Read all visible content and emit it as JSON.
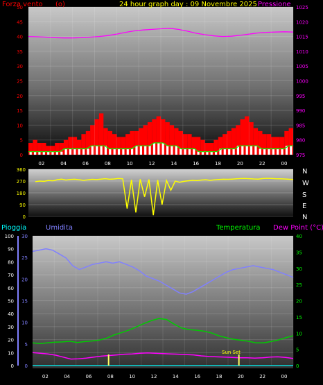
{
  "header": {
    "title": "24 hour graph day : 09 Novembre 2025",
    "left_label": "Forza vento",
    "left_unit": "(o)",
    "right_label": "Pressione"
  },
  "middle": {
    "compass": [
      "N",
      "W",
      "S",
      "E",
      "N"
    ]
  },
  "bottom_header": {
    "rain_label": "Pioggia",
    "humidity_label": "Umidita",
    "temp_label": "Temperatura",
    "dew_label": "Dew Point (°C)"
  },
  "sunset_label": "Sun Set",
  "colors": {
    "wind": "#ff0000",
    "gust_fill": "#ffffff",
    "wind_avg": "#00ff00",
    "pressure": "#ff00ff",
    "direction": "#ffff00",
    "humidity": "#8080ff",
    "temperature": "#00cc00",
    "dewpoint": "#ff00ff",
    "rain": "#00ffff"
  },
  "chart_data": [
    {
      "type": "area",
      "x_ticks": [
        "02",
        "04",
        "06",
        "08",
        "10",
        "12",
        "14",
        "16",
        "18",
        "20",
        "22",
        "00"
      ],
      "y_left_ticks": [
        0,
        5,
        10,
        15,
        20,
        25,
        30,
        35,
        40,
        45,
        50
      ],
      "ylim_left": [
        0,
        50
      ],
      "y_right_ticks": [
        975,
        980,
        985,
        990,
        995,
        1000,
        1005,
        1010,
        1015,
        1020,
        1025
      ],
      "ylim_right": [
        975,
        1025
      ],
      "series": [
        {
          "name": "Forza vento",
          "axis": "left",
          "values": [
            4,
            5,
            4,
            4,
            3,
            3,
            4,
            4,
            5,
            6,
            6,
            5,
            7,
            8,
            10,
            12,
            14,
            9,
            8,
            7,
            6,
            6,
            7,
            8,
            8,
            9,
            10,
            11,
            12,
            13,
            12,
            11,
            10,
            9,
            8,
            7,
            7,
            6,
            6,
            5,
            4,
            4,
            5,
            6,
            7,
            8,
            9,
            10,
            12,
            13,
            11,
            9,
            8,
            7,
            7,
            6,
            6,
            6,
            8,
            9
          ]
        },
        {
          "name": "Media",
          "axis": "left",
          "values": [
            1,
            1,
            1,
            1,
            1,
            1,
            1,
            1,
            2,
            2,
            2,
            2,
            2,
            2,
            3,
            3,
            3,
            3,
            2,
            2,
            2,
            2,
            2,
            2,
            3,
            3,
            3,
            3,
            4,
            4,
            4,
            3,
            3,
            3,
            2,
            2,
            2,
            2,
            1,
            1,
            1,
            1,
            1,
            2,
            2,
            2,
            2,
            3,
            3,
            3,
            3,
            3,
            2,
            2,
            2,
            2,
            2,
            2,
            3,
            3
          ]
        },
        {
          "name": "Pressione",
          "axis": "right",
          "values": [
            1015.0,
            1014.9,
            1014.8,
            1014.6,
            1014.5,
            1014.5,
            1014.6,
            1014.8,
            1015.0,
            1015.3,
            1015.8,
            1016.4,
            1016.9,
            1017.2,
            1017.4,
            1017.6,
            1017.8,
            1017.4,
            1016.8,
            1016.1,
            1015.6,
            1015.2,
            1015.0,
            1015.1,
            1015.4,
            1015.8,
            1016.2,
            1016.4,
            1016.5,
            1016.6,
            1016.5
          ]
        }
      ]
    },
    {
      "type": "line",
      "y_ticks": [
        0,
        90,
        180,
        270,
        360
      ],
      "ylim": [
        0,
        360
      ],
      "series": [
        {
          "name": "Direzione",
          "values": [
            265,
            270,
            268,
            275,
            272,
            280,
            285,
            278,
            282,
            284,
            280,
            276,
            279,
            283,
            281,
            285,
            288,
            284,
            286,
            290,
            287,
            60,
            280,
            30,
            284,
            150,
            282,
            10,
            278,
            90,
            275,
            200,
            270,
            260,
            268,
            272,
            276,
            274,
            278,
            280,
            276,
            279,
            282,
            284,
            283,
            285,
            287,
            289,
            290,
            288,
            286,
            285,
            289,
            291,
            290,
            288,
            287,
            286,
            284,
            282
          ]
        }
      ]
    },
    {
      "type": "line",
      "x_ticks": [
        "02",
        "04",
        "06",
        "08",
        "10",
        "12",
        "14",
        "16",
        "18",
        "20",
        "22",
        "00"
      ],
      "y_rain_ticks": [
        0,
        10,
        20,
        30,
        40,
        50,
        60,
        70,
        80,
        90,
        100
      ],
      "ylim_rain": [
        0,
        100
      ],
      "y_left_ticks": [
        0,
        5,
        10,
        15,
        20,
        25,
        30
      ],
      "ylim_left": [
        0,
        30
      ],
      "y_right_ticks": [
        0,
        5,
        10,
        15,
        20,
        25,
        30,
        35,
        40
      ],
      "ylim_right": [
        0,
        40
      ],
      "series": [
        {
          "name": "Umidita",
          "axis": "rain",
          "values": [
            88,
            89,
            90,
            89,
            86,
            83,
            77,
            74,
            76,
            78,
            79,
            80,
            79,
            80,
            78,
            76,
            73,
            69,
            67,
            65,
            62,
            59,
            56,
            55,
            57,
            60,
            63,
            66,
            69,
            72,
            74,
            75,
            76,
            77,
            76,
            75,
            74,
            72,
            70,
            68
          ]
        },
        {
          "name": "Temperatura",
          "axis": "right",
          "values": [
            7.0,
            6.8,
            7.0,
            7.2,
            7.3,
            7.5,
            7.1,
            7.4,
            7.6,
            7.9,
            8.5,
            9.5,
            10.2,
            11.0,
            12.0,
            13.0,
            13.9,
            14.5,
            14.2,
            12.8,
            11.6,
            11.1,
            10.9,
            10.6,
            10.1,
            9.2,
            8.6,
            8.1,
            7.8,
            7.5,
            7.0,
            7.0,
            7.4,
            7.9,
            8.6,
            9.2
          ]
        },
        {
          "name": "Dew Point",
          "axis": "right",
          "values": [
            4.0,
            3.8,
            3.6,
            3.2,
            2.6,
            2.0,
            2.1,
            2.3,
            2.6,
            2.9,
            3.1,
            3.3,
            3.5,
            3.6,
            3.8,
            3.9,
            3.8,
            3.7,
            3.6,
            3.5,
            3.4,
            3.3,
            3.0,
            2.8,
            2.7,
            2.6,
            2.5,
            2.4,
            2.4,
            2.3,
            2.4,
            2.6,
            2.7,
            2.5,
            2.2
          ]
        },
        {
          "name": "Pioggia",
          "axis": "rain",
          "values": [
            0,
            0,
            0,
            0,
            0,
            0,
            0,
            0,
            0,
            0,
            0,
            0,
            0,
            0,
            0,
            0,
            0,
            0,
            0,
            0,
            0,
            0,
            0,
            0,
            0,
            0,
            0,
            0,
            0,
            0
          ]
        }
      ],
      "markers": [
        {
          "type": "sunrise_bar",
          "hour": 7
        },
        {
          "type": "sunset_bar",
          "hour": 19,
          "label": "Sun Set"
        }
      ]
    }
  ]
}
